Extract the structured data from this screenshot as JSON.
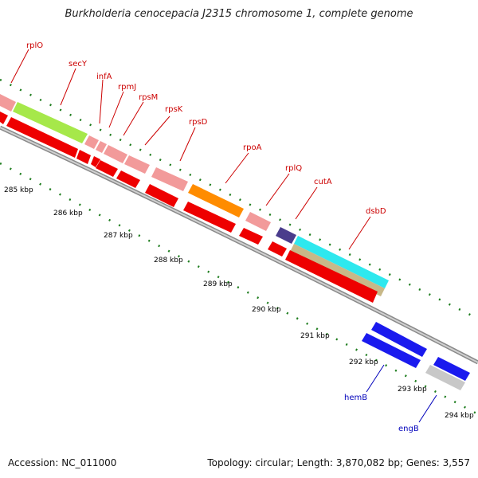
{
  "title": "Burkholderia cenocepacia J2315 chromosome 1, complete genome",
  "footer": {
    "accession": "Accession: NC_011000",
    "summary": "Topology: circular; Length: 3,870,082 bp; Genes: 3,557"
  },
  "colors": {
    "red_gene": "#ee0000",
    "pink_gene": "#f29a9a",
    "blue_gene": "#1a1aee",
    "label_red": "#cc0000",
    "label_blue": "#0000bb",
    "tick_green": "#1e7d1e",
    "backbone": "#8a8a8a",
    "secY": "#a6e84a",
    "rpoA": "#ff8c00",
    "cutA_lane": "#4a3c8c",
    "dsbD_top": "#2ee8ee",
    "dsbD_bottom": "#c8b888",
    "engB": "#c8c8c8"
  },
  "kbp_labels": [
    "285 kbp",
    "286 kbp",
    "287 kbp",
    "288 kbp",
    "289 kbp",
    "290 kbp",
    "291 kbp",
    "292 kbp",
    "293 kbp",
    "294 kbp"
  ],
  "gene_labels": [
    {
      "text": "rplO",
      "color": "label_red"
    },
    {
      "text": "secY",
      "color": "label_red"
    },
    {
      "text": "infA",
      "color": "label_red"
    },
    {
      "text": "rpmJ",
      "color": "label_red"
    },
    {
      "text": "rpsM",
      "color": "label_red"
    },
    {
      "text": "rpsK",
      "color": "label_red"
    },
    {
      "text": "rpsD",
      "color": "label_red"
    },
    {
      "text": "rpoA",
      "color": "label_red"
    },
    {
      "text": "rplQ",
      "color": "label_red"
    },
    {
      "text": "cutA",
      "color": "label_red"
    },
    {
      "text": "dsbD",
      "color": "label_red"
    },
    {
      "text": "hemB",
      "color": "label_blue"
    },
    {
      "text": "engB",
      "color": "label_blue"
    }
  ]
}
